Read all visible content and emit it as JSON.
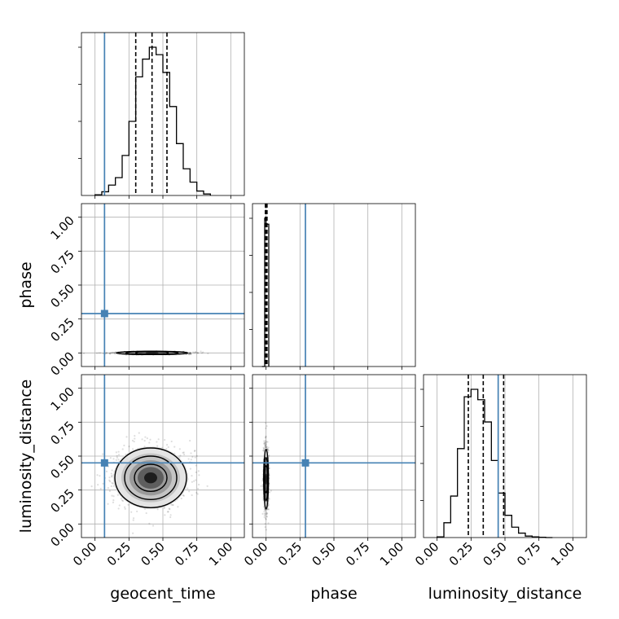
{
  "chart_data": {
    "type": "corner",
    "parameters": [
      "geocent_time",
      "phase",
      "luminosity_distance"
    ],
    "axis_labels": {
      "geocent_time": "geocent_time",
      "phase": "phase",
      "luminosity_distance": "luminosity_distance"
    },
    "range": [
      -0.1,
      1.1
    ],
    "ticks": [
      0.0,
      0.25,
      0.5,
      0.75,
      1.0
    ],
    "tick_labels": [
      "0.00",
      "0.25",
      "0.50",
      "0.75",
      "1.00"
    ],
    "truths": {
      "geocent_time": 0.07,
      "phase": 0.29,
      "luminosity_distance": 0.45
    },
    "truth_color": "#4682b4",
    "hist_color": "#000000",
    "grid": true,
    "histograms": {
      "geocent_time": {
        "bin_edges": [
          0.0,
          0.05,
          0.1,
          0.15,
          0.2,
          0.25,
          0.3,
          0.35,
          0.4,
          0.45,
          0.5,
          0.55,
          0.6,
          0.65,
          0.7,
          0.75,
          0.8,
          0.85
        ],
        "counts": [
          0.005,
          0.025,
          0.07,
          0.12,
          0.27,
          0.5,
          0.8,
          0.92,
          1.0,
          0.95,
          0.83,
          0.6,
          0.35,
          0.18,
          0.09,
          0.03,
          0.01
        ],
        "quantiles": [
          0.3,
          0.42,
          0.53
        ]
      },
      "phase": {
        "bin_edges": [
          -0.03,
          -0.01,
          0.0,
          0.02
        ],
        "counts": [
          0.0,
          1.0,
          0.96
        ],
        "quantiles": [
          -0.005,
          0.0,
          0.007
        ]
      },
      "luminosity_distance": {
        "bin_edges": [
          0.0,
          0.05,
          0.1,
          0.15,
          0.2,
          0.25,
          0.3,
          0.35,
          0.4,
          0.45,
          0.5,
          0.55,
          0.6,
          0.65,
          0.7,
          0.75,
          0.8,
          0.85
        ],
        "counts": [
          0.005,
          0.1,
          0.28,
          0.6,
          0.95,
          1.0,
          0.93,
          0.78,
          0.52,
          0.3,
          0.15,
          0.07,
          0.03,
          0.01,
          0.005,
          0.002,
          0.0
        ],
        "quantiles": [
          0.23,
          0.34,
          0.49
        ]
      }
    },
    "contours_2d": {
      "phase_vs_geocent_time": {
        "center": [
          0.42,
          0.0
        ],
        "sigma": [
          0.12,
          0.004
        ]
      },
      "luminosity_distance_vs_geocent_time": {
        "center": [
          0.41,
          0.34
        ],
        "sigma": [
          0.12,
          0.1
        ]
      },
      "luminosity_distance_vs_phase": {
        "center": [
          0.0,
          0.33
        ],
        "sigma": [
          0.008,
          0.1
        ]
      }
    }
  }
}
